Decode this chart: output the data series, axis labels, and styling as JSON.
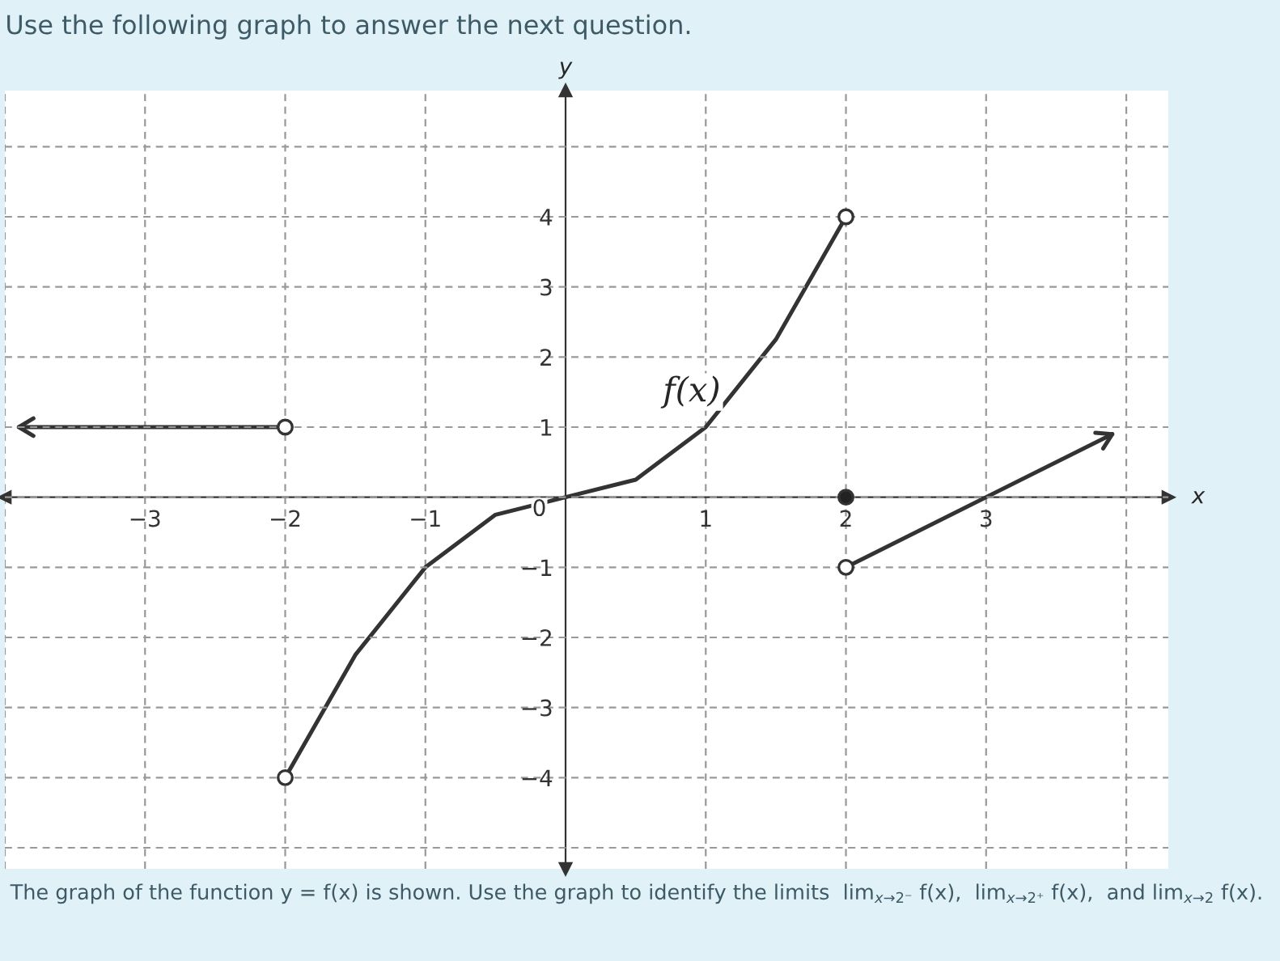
{
  "chart_data": {
    "type": "line",
    "title": "Use the following graph to answer the next question.",
    "xlabel": "x",
    "ylabel": "y",
    "annotations": [
      {
        "text": "f(x)",
        "x": 0.9,
        "y": 1.5
      },
      "The graph of the function y = f(x) is shown. Use the graph to identify the limits  lim$_{x→2⁻}$ f(x),  lim$_{x→2⁺}$ f(x),  and lim$_{x→2}$ f(x)."
    ],
    "series": [
      {
        "color": "#333333",
        "x": [
          -3.9,
          -2
        ],
        "values": [
          1,
          1
        ]
      },
      {
        "color": "#333333",
        "x": [
          -2,
          -1.5,
          -1,
          -0.5,
          0,
          0.5,
          1,
          1.5,
          2
        ],
        "values": [
          -4,
          -2.25,
          -1,
          -0.25,
          0,
          0.25,
          1,
          2.25,
          4
        ]
      },
      {
        "color": "#333333",
        "x": [
          2,
          3.9
        ],
        "values": [
          -1,
          0.9
        ]
      },
      {
        "type": "scatter",
        "color": "#ffffff",
        "x": [
          -2,
          -2,
          2,
          2
        ],
        "values": [
          1,
          -4,
          4,
          -1
        ]
      },
      {
        "type": "scatter",
        "color": "#222222",
        "x": [
          2
        ],
        "values": [
          0
        ]
      }
    ],
    "xlim": [
      -4.0,
      4.3
    ],
    "ylim": [
      -5.3,
      5.8
    ],
    "xticks": [
      {
        "value": -4,
        "label": null
      },
      -3,
      -2,
      -1,
      1,
      2,
      3,
      {
        "value": 4,
        "label": null
      }
    ],
    "yticks": [
      {
        "value": -5,
        "label": null
      },
      -4,
      -3,
      -2,
      -1,
      0,
      1,
      2,
      3,
      4,
      {
        "value": 5,
        "label": null
      }
    ],
    "grid": true,
    "line_style": "solid",
    "legend": false
  }
}
